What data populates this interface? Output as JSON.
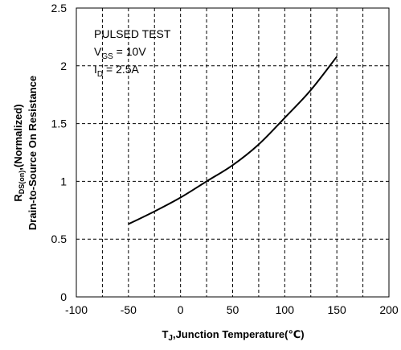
{
  "chart_data": {
    "type": "line",
    "xlabel": {
      "main": "T",
      "sub": "J",
      "rest": ",Junction Temperature(℃)"
    },
    "ylabel": {
      "line1_main": "R",
      "line1_sub": "DS(on)",
      "line1_rest": ",(Normalized)",
      "line2": "Drain-to-Source On Resistance"
    },
    "xlim": [
      -100,
      200
    ],
    "ylim": [
      0,
      2.5
    ],
    "xticks": [
      -100,
      -50,
      0,
      50,
      100,
      150,
      200
    ],
    "xtick_labels": [
      "-100",
      "-50",
      "0",
      "50",
      "100",
      "150",
      "200"
    ],
    "yticks": [
      0,
      0.5,
      1,
      1.5,
      2,
      2.5
    ],
    "ytick_labels": [
      "0",
      "0.5",
      "1",
      "1.5",
      "2",
      "2.5"
    ],
    "grid": true,
    "grid_x": [
      -75,
      -50,
      -25,
      0,
      25,
      50,
      75,
      100,
      125,
      150,
      175
    ],
    "grid_y": [
      0.5,
      1,
      1.5,
      2
    ],
    "annotations": {
      "line1": "PULSED TEST",
      "line2_main": "V",
      "line2_sub": "GS",
      "line2_rest": " = 10V",
      "line3_main": "I",
      "line3_sub": "D",
      "line3_rest": " = 2.5A"
    },
    "series": [
      {
        "x": [
          -50,
          -25,
          0,
          25,
          50,
          75,
          100,
          125,
          150
        ],
        "y": [
          0.63,
          0.74,
          0.86,
          1.0,
          1.14,
          1.32,
          1.55,
          1.79,
          2.08
        ]
      }
    ],
    "colors": {
      "line": "#000000",
      "grid": "#000000",
      "axes": "#000000"
    }
  }
}
